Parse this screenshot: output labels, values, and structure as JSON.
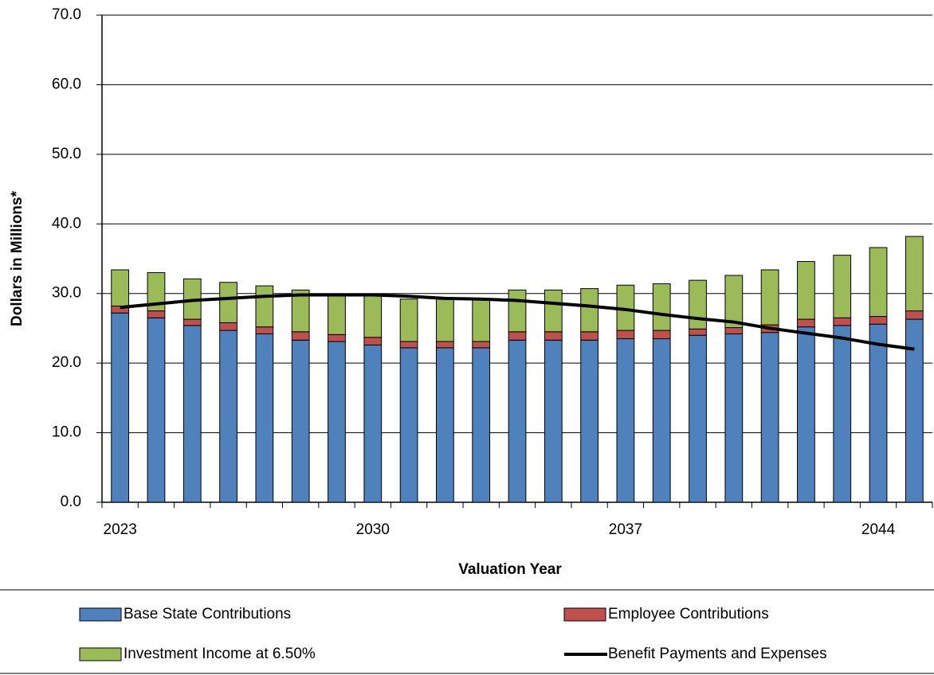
{
  "chart_data": {
    "type": "stacked-bar-line",
    "xlabel": "Valuation Year",
    "ylabel": "Dollars in Millions*",
    "categories": [
      "2023",
      null,
      null,
      null,
      null,
      null,
      null,
      "2030",
      null,
      null,
      null,
      null,
      null,
      null,
      "2037",
      null,
      null,
      null,
      null,
      null,
      null,
      "2044",
      null
    ],
    "series": [
      {
        "name": "Base State Contributions",
        "color": "#4f81bd",
        "kind": "bar",
        "values": [
          27.2,
          26.5,
          25.4,
          24.7,
          24.2,
          23.3,
          23.1,
          22.6,
          22.2,
          22.2,
          22.2,
          23.3,
          23.3,
          23.3,
          23.5,
          23.5,
          24.0,
          24.2,
          24.4,
          25.2,
          25.4,
          25.6,
          26.3
        ]
      },
      {
        "name": "Employee Contributions",
        "color": "#c0504d",
        "kind": "bar",
        "values": [
          1.0,
          1.0,
          0.9,
          1.1,
          1.0,
          1.2,
          1.0,
          1.1,
          0.9,
          0.9,
          0.9,
          1.2,
          1.2,
          1.2,
          1.2,
          1.2,
          0.9,
          0.9,
          1.1,
          1.1,
          1.1,
          1.1,
          1.2
        ]
      },
      {
        "name": "Investment Income at 6.50%",
        "color": "#9bbb59",
        "kind": "bar",
        "values": [
          5.2,
          5.5,
          5.8,
          5.8,
          5.9,
          6.0,
          5.7,
          6.1,
          6.1,
          6.1,
          6.1,
          6.0,
          6.0,
          6.2,
          6.5,
          6.7,
          7.0,
          7.5,
          7.9,
          8.3,
          9.0,
          9.9,
          10.7
        ]
      },
      {
        "name": "Benefit Payments and Expenses",
        "color": "#000000",
        "kind": "line",
        "values": [
          28.0,
          28.5,
          29.0,
          29.3,
          29.6,
          29.8,
          29.8,
          29.8,
          29.6,
          29.3,
          29.2,
          29.0,
          28.6,
          28.2,
          27.7,
          27.0,
          26.4,
          25.9,
          25.0,
          24.3,
          23.6,
          22.7,
          22.0
        ]
      }
    ],
    "ylim": [
      0,
      70
    ],
    "yticks": [
      {
        "value": 0,
        "label": "0.0"
      },
      {
        "value": 10,
        "label": "10.0"
      },
      {
        "value": 20,
        "label": "20.0"
      },
      {
        "value": 30,
        "label": "30.0"
      },
      {
        "value": 40,
        "label": "40.0"
      },
      {
        "value": 50,
        "label": "50.0"
      },
      {
        "value": 60,
        "label": "60.0"
      },
      {
        "value": 70,
        "label": "70.0"
      }
    ],
    "grid": true
  }
}
